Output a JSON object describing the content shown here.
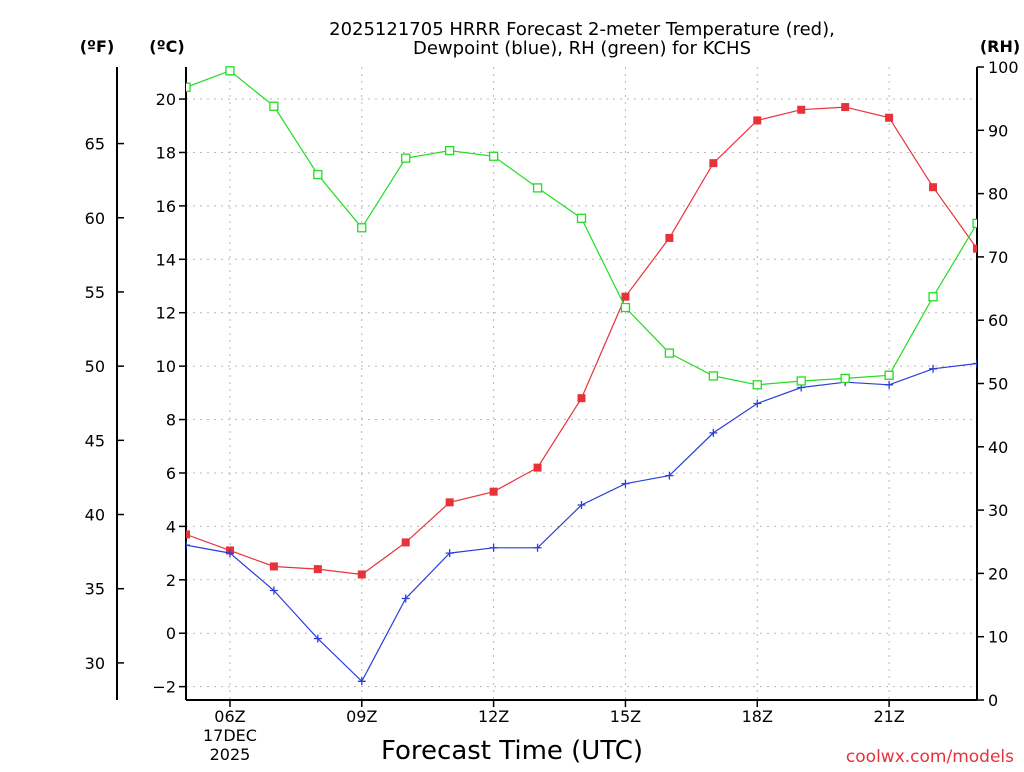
{
  "chart_data": {
    "type": "line",
    "title_lines": [
      "2025121705 HRRR Forecast 2-meter Temperature (red),",
      "Dewpoint (blue), RH (green) for KCHS"
    ],
    "xlabel": "Forecast Time (UTC)",
    "credit": "coolwx.com/models",
    "units": {
      "f": "(ºF)",
      "c": "(ºC)",
      "rh": "(RH)"
    },
    "x_hours": [
      5,
      6,
      7,
      8,
      9,
      10,
      11,
      12,
      13,
      14,
      15,
      16,
      17,
      18,
      19,
      20,
      21,
      22,
      23
    ],
    "xlim": [
      5,
      23
    ],
    "x_ticks": [
      {
        "hour": 6,
        "lines": [
          "06Z",
          "17DEC",
          "2025"
        ]
      },
      {
        "hour": 9,
        "lines": [
          "09Z"
        ]
      },
      {
        "hour": 12,
        "lines": [
          "12Z"
        ]
      },
      {
        "hour": 15,
        "lines": [
          "15Z"
        ]
      },
      {
        "hour": 18,
        "lines": [
          "18Z"
        ]
      },
      {
        "hour": 21,
        "lines": [
          "21Z"
        ]
      }
    ],
    "celsius_axis": {
      "ylim": [
        -2.5,
        21.2
      ],
      "ticks": [
        "-2",
        "0",
        "2",
        "4",
        "6",
        "8",
        "10",
        "12",
        "14",
        "16",
        "18",
        "20"
      ]
    },
    "fahrenheit_axis": {
      "ticks": [
        "30",
        "35",
        "40",
        "45",
        "50",
        "55",
        "60",
        "65"
      ]
    },
    "rh_axis": {
      "ylim": [
        0,
        100
      ],
      "ticks": [
        "0",
        "10",
        "20",
        "30",
        "40",
        "50",
        "60",
        "70",
        "80",
        "90",
        "100"
      ]
    },
    "series": [
      {
        "name": "2-meter Temperature",
        "axis": "celsius",
        "color": "#e8323a",
        "marker": "filled-square",
        "values": [
          3.7,
          3.1,
          2.5,
          2.4,
          2.2,
          3.4,
          4.9,
          5.3,
          6.2,
          8.8,
          12.6,
          14.8,
          17.6,
          19.2,
          19.6,
          19.7,
          19.3,
          16.7,
          14.4
        ]
      },
      {
        "name": "Dewpoint",
        "axis": "celsius",
        "color": "#2b3fd8",
        "marker": "plus",
        "values": [
          3.3,
          3.0,
          1.6,
          -0.2,
          -1.8,
          1.3,
          3.0,
          3.2,
          3.2,
          4.8,
          5.6,
          5.9,
          7.5,
          8.6,
          9.2,
          9.4,
          9.3,
          9.9,
          10.1
        ]
      },
      {
        "name": "RH",
        "axis": "rh",
        "color": "#22dd22",
        "marker": "open-square",
        "values": [
          96.8,
          99.4,
          93.8,
          83.0,
          74.6,
          85.6,
          86.8,
          85.9,
          80.9,
          76.1,
          62.0,
          54.8,
          51.2,
          49.8,
          50.4,
          50.8,
          51.3,
          63.7,
          75.3
        ]
      }
    ]
  }
}
